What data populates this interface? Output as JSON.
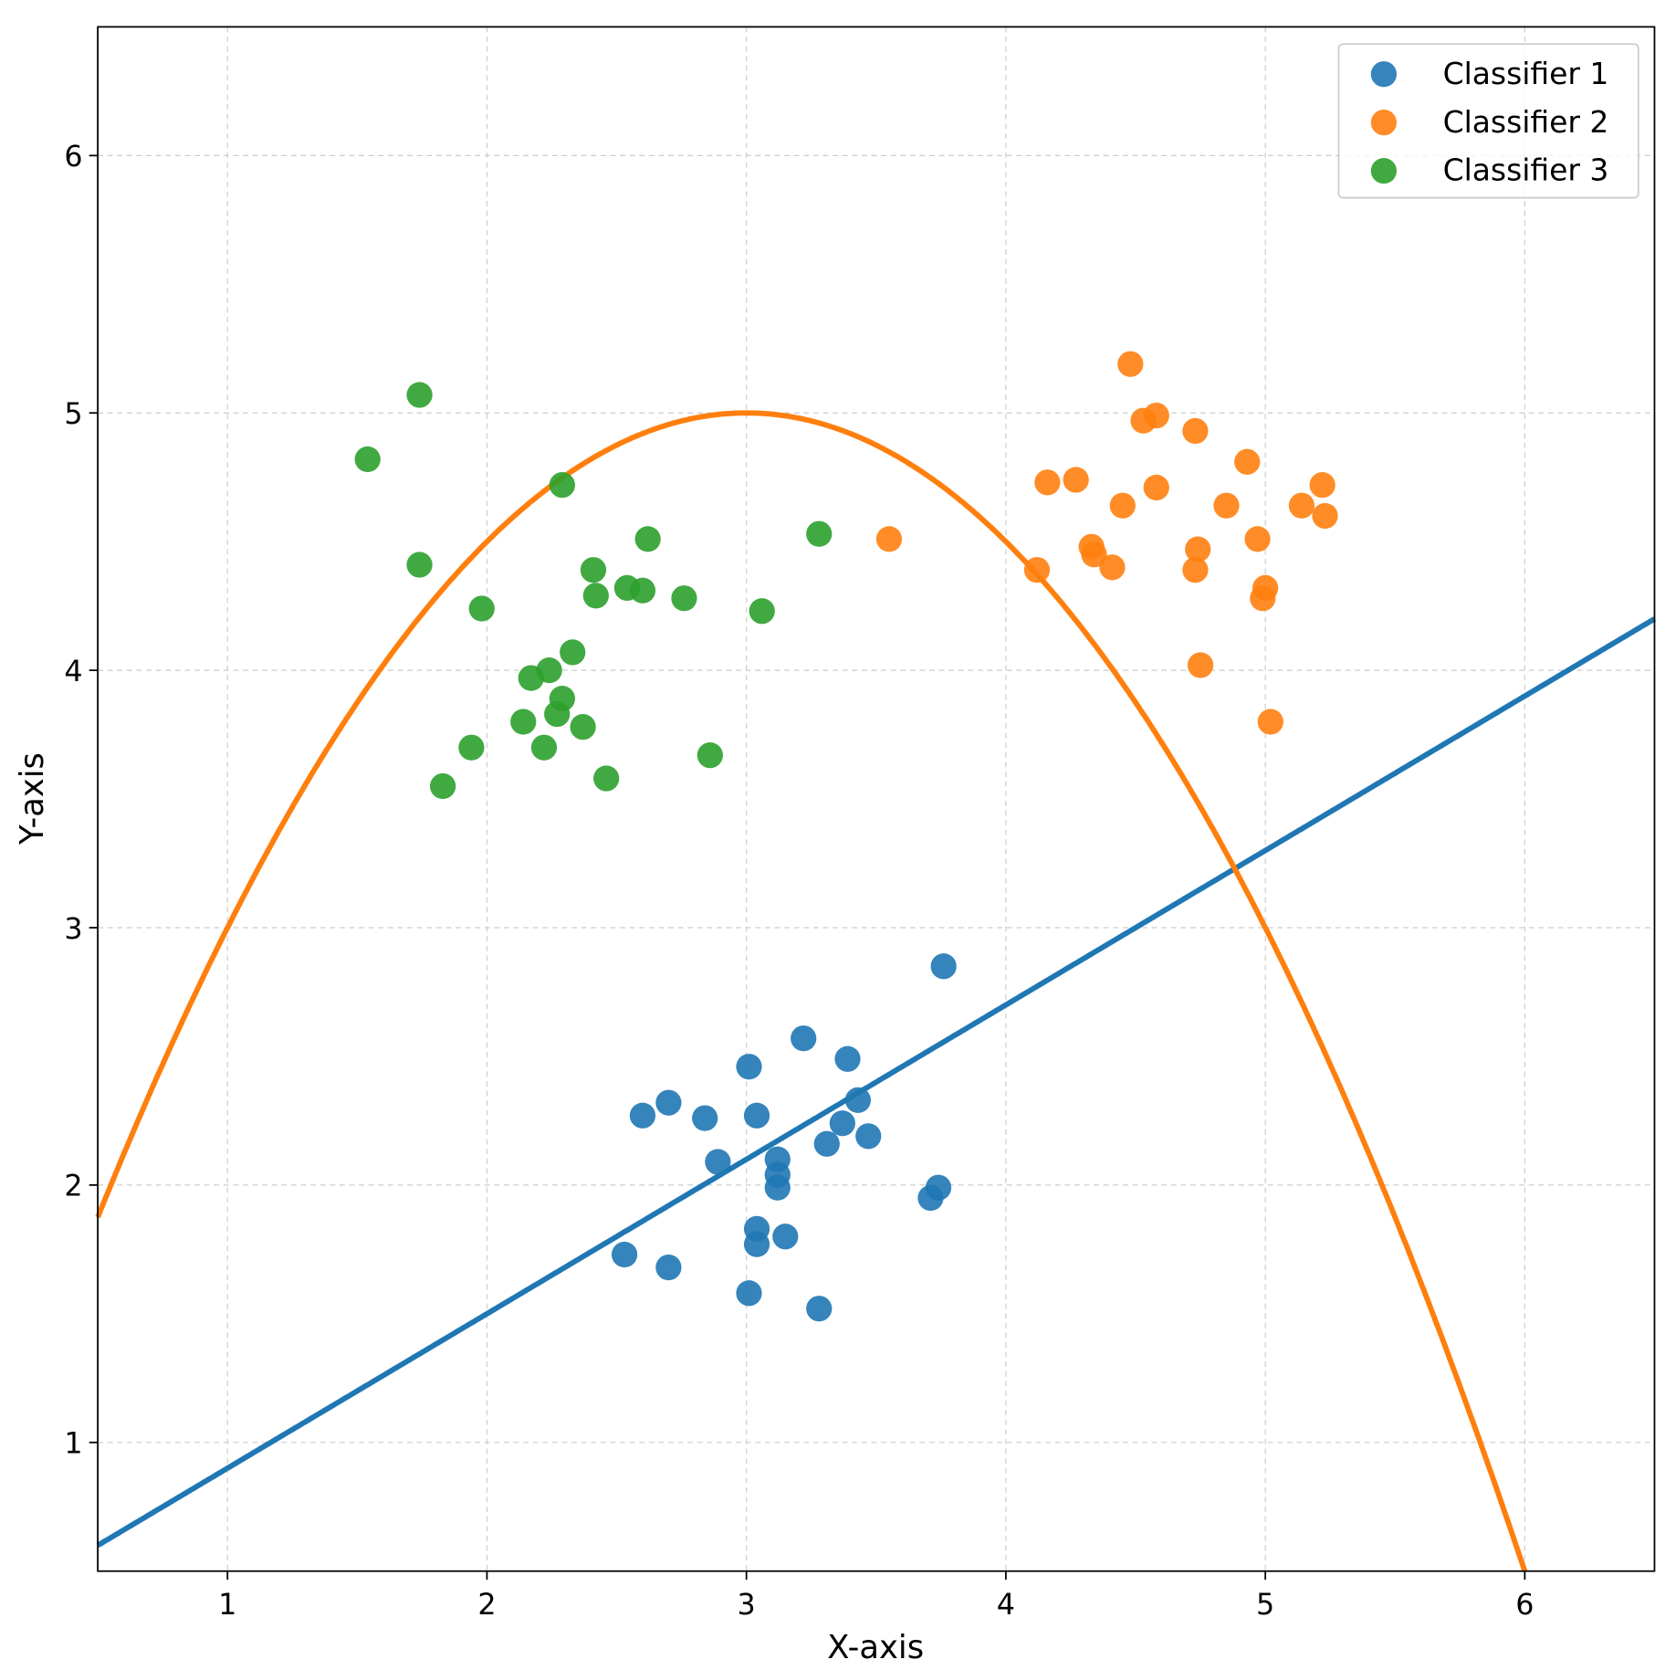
{
  "chart_data": {
    "type": "scatter",
    "title": "",
    "xlabel": "X-axis",
    "ylabel": "Y-axis",
    "xlim": [
      0.5,
      6.5
    ],
    "ylim": [
      0.5,
      6.5
    ],
    "xticks": [
      1,
      2,
      3,
      4,
      5,
      6
    ],
    "yticks": [
      1,
      2,
      3,
      4,
      5,
      6
    ],
    "grid": true,
    "legend_position": "top-right",
    "series": [
      {
        "name": "Classifier 1",
        "color": "#1f77b4",
        "points": [
          [
            3.76,
            2.85
          ],
          [
            3.22,
            2.57
          ],
          [
            3.01,
            2.46
          ],
          [
            3.39,
            2.49
          ],
          [
            2.7,
            2.32
          ],
          [
            2.6,
            2.27
          ],
          [
            3.04,
            2.27
          ],
          [
            2.84,
            2.26
          ],
          [
            3.43,
            2.33
          ],
          [
            3.37,
            2.24
          ],
          [
            3.47,
            2.19
          ],
          [
            3.31,
            2.16
          ],
          [
            2.89,
            2.09
          ],
          [
            3.12,
            2.1
          ],
          [
            3.12,
            2.04
          ],
          [
            3.12,
            1.99
          ],
          [
            3.74,
            1.99
          ],
          [
            3.71,
            1.95
          ],
          [
            3.04,
            1.83
          ],
          [
            3.04,
            1.77
          ],
          [
            3.15,
            1.8
          ],
          [
            2.53,
            1.73
          ],
          [
            2.7,
            1.68
          ],
          [
            3.01,
            1.58
          ],
          [
            3.28,
            1.52
          ]
        ]
      },
      {
        "name": "Classifier 2",
        "color": "#ff7f0e",
        "points": [
          [
            4.48,
            5.19
          ],
          [
            4.53,
            4.97
          ],
          [
            4.58,
            4.99
          ],
          [
            4.73,
            4.93
          ],
          [
            4.93,
            4.81
          ],
          [
            4.16,
            4.73
          ],
          [
            4.27,
            4.74
          ],
          [
            4.58,
            4.71
          ],
          [
            4.45,
            4.64
          ],
          [
            4.85,
            4.64
          ],
          [
            5.14,
            4.64
          ],
          [
            5.22,
            4.72
          ],
          [
            5.23,
            4.6
          ],
          [
            4.97,
            4.51
          ],
          [
            3.55,
            4.51
          ],
          [
            4.33,
            4.48
          ],
          [
            4.34,
            4.45
          ],
          [
            4.74,
            4.47
          ],
          [
            4.41,
            4.4
          ],
          [
            4.73,
            4.39
          ],
          [
            4.12,
            4.39
          ],
          [
            5.0,
            4.32
          ],
          [
            4.99,
            4.28
          ],
          [
            4.75,
            4.02
          ],
          [
            5.02,
            3.8
          ]
        ]
      },
      {
        "name": "Classifier 3",
        "color": "#2ca02c",
        "points": [
          [
            1.74,
            5.07
          ],
          [
            1.54,
            4.82
          ],
          [
            2.29,
            4.72
          ],
          [
            1.74,
            4.41
          ],
          [
            2.62,
            4.51
          ],
          [
            3.28,
            4.53
          ],
          [
            2.41,
            4.39
          ],
          [
            2.42,
            4.29
          ],
          [
            2.54,
            4.32
          ],
          [
            2.6,
            4.31
          ],
          [
            2.76,
            4.28
          ],
          [
            3.06,
            4.23
          ],
          [
            1.98,
            4.24
          ],
          [
            2.33,
            4.07
          ],
          [
            2.17,
            3.97
          ],
          [
            2.24,
            4.0
          ],
          [
            2.29,
            3.89
          ],
          [
            2.27,
            3.83
          ],
          [
            2.14,
            3.8
          ],
          [
            2.37,
            3.78
          ],
          [
            1.94,
            3.7
          ],
          [
            2.22,
            3.7
          ],
          [
            2.86,
            3.67
          ],
          [
            2.46,
            3.58
          ],
          [
            1.83,
            3.55
          ]
        ]
      }
    ],
    "lines": [
      {
        "kind": "linear",
        "slope": 0.6,
        "intercept": 0.3,
        "color": "#1f77b4"
      },
      {
        "kind": "parabola",
        "vertex": [
          3,
          5
        ],
        "a": -0.5,
        "color": "#ff7f0e"
      }
    ]
  }
}
